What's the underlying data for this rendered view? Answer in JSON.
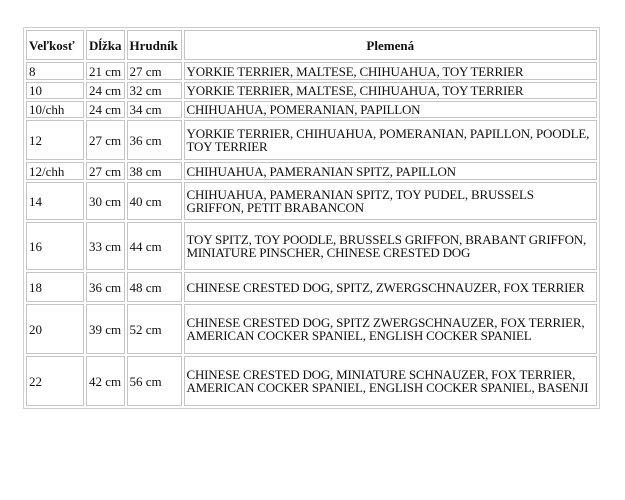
{
  "table": {
    "headers": [
      "Veľkosť",
      "Dĺžka",
      "Hrudník",
      "Plemená"
    ],
    "rows": [
      [
        "8",
        "21 cm",
        "27 cm",
        "YORKIE TERRIER, MALTESE, CHIHUAHUA, TOY TERRIER"
      ],
      [
        "10",
        "24 cm",
        "32 cm",
        "YORKIE TERRIER, MALTESE, CHIHUAHUA, TOY TERRIER"
      ],
      [
        "10/chh",
        "24 cm",
        "34 cm",
        "CHIHUAHUA, POMERANIAN, PAPILLON"
      ],
      [
        "12",
        "27 cm",
        "36 cm",
        "YORKIE TERRIER, CHIHUAHUA, POMERANIAN, PAPILLON, POODLE, TOY TERRIER"
      ],
      [
        "12/chh",
        "27 cm",
        "38 cm",
        "CHIHUAHUA, PAMERANIAN SPITZ, PAPILLON"
      ],
      [
        "14",
        "30 cm",
        "40 cm",
        "CHIHUAHUA, PAMERANIAN SPITZ, TOY PUDEL, BRUSSELS GRIFFON, PETIT BRABANCON"
      ],
      [
        "16",
        "33 cm",
        "44 cm",
        "TOY SPITZ, TOY POODLE, BRUSSELS GRIFFON, BRABANT GRIFFON, MINIATURE PINSCHER, CHINESE CRESTED DOG"
      ],
      [
        "18",
        "36 cm",
        "48 cm",
        "CHINESE CRESTED DOG, SPITZ,  ZWERGSCHNAUZER, FOX TERRIER"
      ],
      [
        "20",
        "39 cm",
        "52 cm",
        "CHINESE CRESTED DOG, SPITZ ZWERGSCHNAUZER, FOX TERRIER, AMERICAN COCKER SPANIEL, ENGLISH COCKER SPANIEL"
      ],
      [
        "22",
        "42 cm",
        "56 cm",
        "CHINESE CRESTED DOG, MINIATURE SCHNAUZER, FOX TERRIER, AMERICAN COCKER SPANIEL, ENGLISH COCKER SPANIEL, BASENJI"
      ]
    ]
  }
}
